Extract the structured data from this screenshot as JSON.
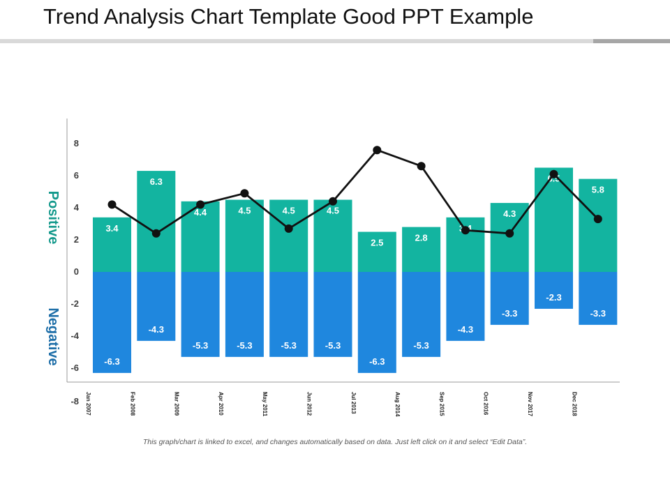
{
  "page": {
    "title": "Trend Analysis Chart Template Good PPT Example",
    "footnote": "This graph/chart is linked to excel, and changes automatically based on data. Just left click on it and select “Edit Data”."
  },
  "colors": {
    "positive": "#13b4a0",
    "negative": "#1f87de",
    "line": "#111111",
    "positive_label": "#14998c",
    "negative_label": "#1d6ea8",
    "axis": "#999999"
  },
  "chart_data": {
    "type": "bar",
    "categories": [
      "Jan 2007",
      "Feb 2008",
      "Mar 2009",
      "Apr 2010",
      "May 2011",
      "Jun 2012",
      "Jul 2013",
      "Aug 2014",
      "Sep 2015",
      "Oct 2016",
      "Nov 2017",
      "Dec 2018"
    ],
    "series": [
      {
        "name": "Positive",
        "type": "bar",
        "values": [
          3.4,
          6.3,
          4.4,
          4.5,
          4.5,
          4.5,
          2.5,
          2.8,
          3.4,
          4.3,
          6.5,
          5.8
        ]
      },
      {
        "name": "Negative",
        "type": "bar",
        "values": [
          -6.3,
          -4.3,
          -5.3,
          -5.3,
          -5.3,
          -5.3,
          -6.3,
          -5.3,
          -4.3,
          -3.3,
          -2.3,
          -3.3
        ]
      },
      {
        "type": "line",
        "values": [
          4.2,
          2.4,
          4.2,
          4.9,
          2.7,
          4.4,
          7.6,
          6.6,
          2.6,
          2.4,
          6.1,
          3.3
        ]
      }
    ],
    "y_ticks": [
      8,
      6,
      4,
      2,
      0,
      -2,
      -4,
      -6,
      -8
    ],
    "ylim": [
      -8,
      8
    ],
    "axis_side_labels": {
      "positive": "Positive",
      "negative": "Negative"
    }
  }
}
